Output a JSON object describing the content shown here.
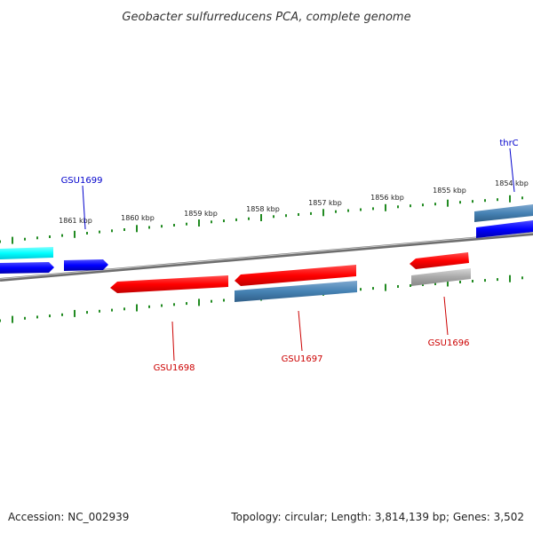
{
  "title": "Geobacter sulfurreducens PCA, complete genome",
  "footer": {
    "accession": "Accession: NC_002939",
    "summary": "Topology: circular; Length: 3,814,139 bp; Genes: 3,502"
  },
  "ruler": {
    "ticks": [
      "1861 kbp",
      "1860 kbp",
      "1859 kbp",
      "1858 kbp",
      "1857 kbp",
      "1856 kbp",
      "1855 kbp",
      "1854 kbp"
    ]
  },
  "genes": [
    {
      "id": "GSU1699",
      "strand": "forward",
      "color": "#0000cc"
    },
    {
      "id": "thrC",
      "strand": "forward",
      "color": "#0000cc"
    },
    {
      "id": "GSU1698",
      "strand": "reverse",
      "color": "#cc0000"
    },
    {
      "id": "GSU1697",
      "strand": "reverse",
      "color": "#cc0000"
    },
    {
      "id": "GSU1696",
      "strand": "reverse",
      "color": "#cc0000"
    }
  ],
  "colors": {
    "forward_cds": "#0000ff",
    "reverse_cds": "#ff0000",
    "forward_feature": "#00ffff",
    "gene_feature": "#4682b4",
    "pseudo_feature": "#a0a0a0",
    "ruler_ticks": "#228b22",
    "backbone": "#808080"
  }
}
